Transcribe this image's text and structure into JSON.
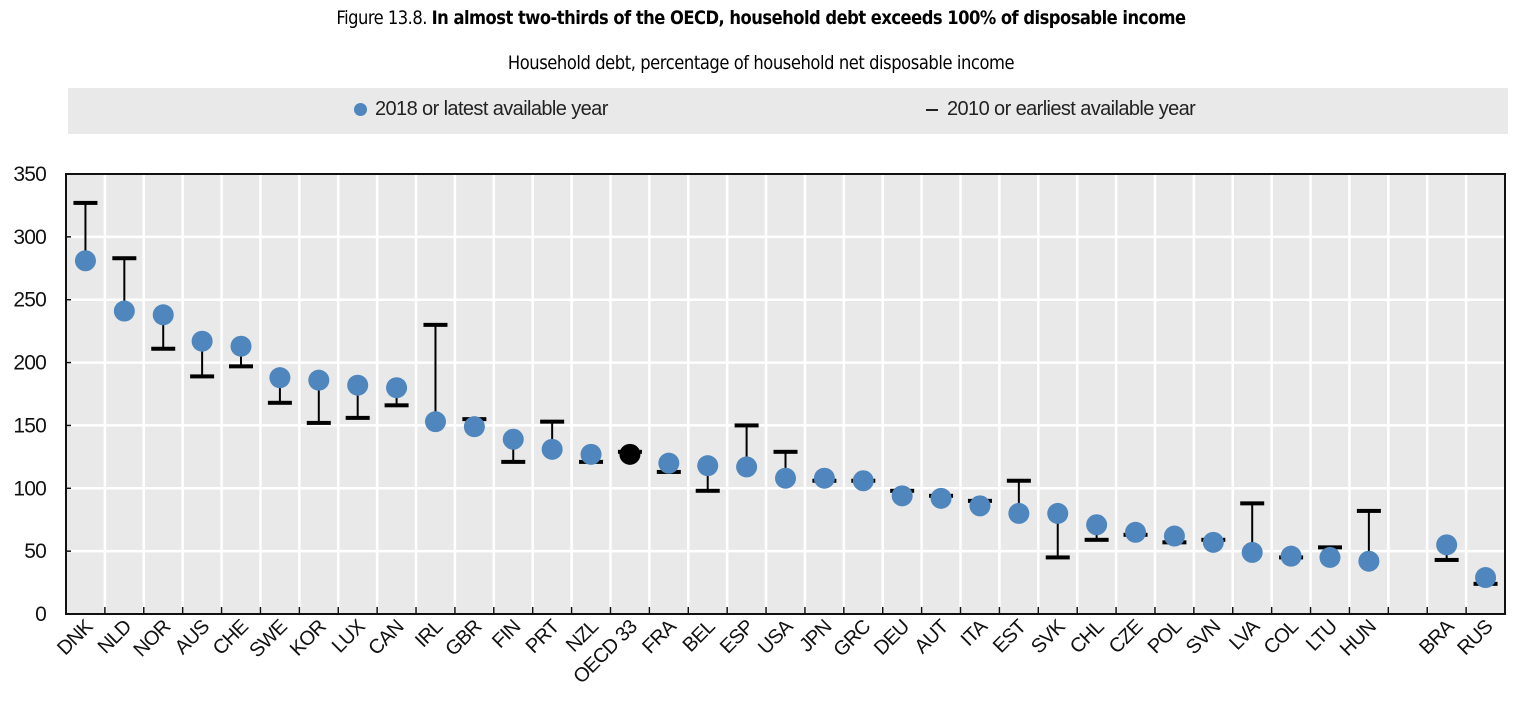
{
  "header": {
    "figure_label": "Figure 13.8.",
    "title": "In almost two-thirds of the OECD, household debt exceeds 100% of disposable income",
    "subtitle": "Household debt, percentage of household net disposable income"
  },
  "legend": {
    "items": [
      {
        "label": "2018 or latest available year",
        "marker": "dot-icon",
        "color": "#4e86bd"
      },
      {
        "label": "2010 or earliest available year",
        "marker": "dash-icon",
        "color": "#000000"
      }
    ]
  },
  "colors": {
    "point": "#4e86bd",
    "highlight_point": "#000000",
    "plot_background": "#e9e9e9",
    "grid": "#ffffff",
    "range_line": "#000000"
  },
  "chart_data": {
    "type": "scatter",
    "title": "In almost two-thirds of the OECD, household debt exceeds 100% of disposable income",
    "subtitle": "Household debt, percentage of household net disposable income",
    "xlabel": "",
    "ylabel": "",
    "ylim": [
      0,
      350
    ],
    "yticks": [
      0,
      50,
      100,
      150,
      200,
      250,
      300,
      350
    ],
    "grid": true,
    "legend_position": "top",
    "categories": [
      "DNK",
      "NLD",
      "NOR",
      "AUS",
      "CHE",
      "SWE",
      "KOR",
      "LUX",
      "CAN",
      "IRL",
      "GBR",
      "FIN",
      "PRT",
      "NZL",
      "OECD 33",
      "FRA",
      "BEL",
      "ESP",
      "USA",
      "JPN",
      "GRC",
      "DEU",
      "AUT",
      "ITA",
      "EST",
      "SVK",
      "CHL",
      "CZE",
      "POL",
      "SVN",
      "LVA",
      "COL",
      "LTU",
      "HUN",
      "",
      "BRA",
      "RUS"
    ],
    "highlight_category": "OECD 33",
    "series": [
      {
        "name": "2018 or latest available year",
        "marker": "circle",
        "values": [
          281,
          241,
          238,
          217,
          213,
          188,
          186,
          182,
          180,
          153,
          149,
          139,
          131,
          127,
          127,
          120,
          118,
          117,
          108,
          108,
          106,
          94,
          92,
          86,
          80,
          80,
          71,
          65,
          62,
          57,
          49,
          46,
          45,
          42,
          null,
          55,
          29
        ]
      },
      {
        "name": "2010 or earliest available year",
        "marker": "dash",
        "values": [
          327,
          283,
          211,
          189,
          197,
          168,
          152,
          156,
          166,
          230,
          155,
          121,
          153,
          121,
          129,
          113,
          98,
          150,
          129,
          106,
          106,
          98,
          94,
          90,
          106,
          45,
          59,
          63,
          57,
          59,
          88,
          45,
          53,
          82,
          null,
          43,
          24
        ]
      }
    ]
  }
}
